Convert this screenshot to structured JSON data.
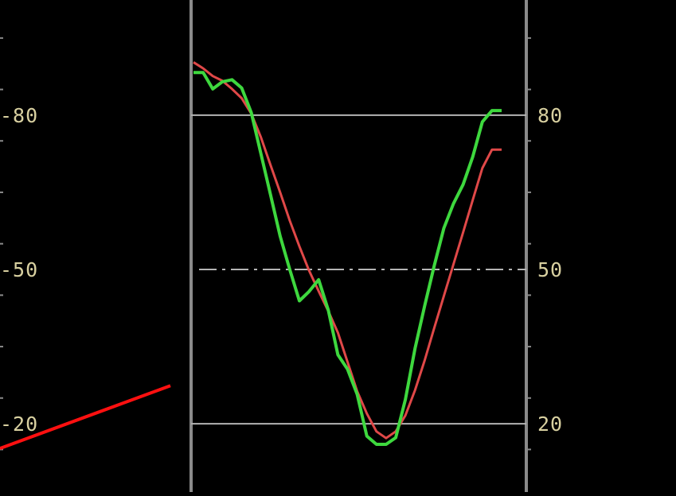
{
  "chart_data": [
    {
      "type": "line",
      "title": "",
      "ylim": [
        0,
        100
      ],
      "right_axis_ticks": [
        {
          "value": 80,
          "label": "80"
        },
        {
          "value": 50,
          "label": "50"
        },
        {
          "value": 20,
          "label": "20"
        }
      ],
      "left_axis_ticks": [
        {
          "value": 80,
          "label": "-80"
        },
        {
          "value": 50,
          "label": "-50"
        },
        {
          "value": 20,
          "label": "-20"
        }
      ],
      "reference_lines": [
        {
          "value": 80,
          "style": "solid"
        },
        {
          "value": 50,
          "style": "dash-dot"
        },
        {
          "value": 20,
          "style": "solid"
        }
      ],
      "x": [
        0,
        1,
        2,
        3,
        4,
        5,
        6,
        7,
        8,
        9,
        10,
        11,
        12,
        13,
        14,
        15,
        16,
        17,
        18,
        19,
        20,
        21,
        22,
        23,
        24,
        25,
        26,
        27,
        28,
        29,
        30,
        31,
        32
      ],
      "series": [
        {
          "color": "#3ed83e",
          "values": [
            88.3,
            88.3,
            85.1,
            86.5,
            86.9,
            85.3,
            80.5,
            72.5,
            64.5,
            56.5,
            50.0,
            43.9,
            45.7,
            48.0,
            42.1,
            33.4,
            30.6,
            25.7,
            17.6,
            16.0,
            16.0,
            17.3,
            24.7,
            34.6,
            42.9,
            50.7,
            58.0,
            62.8,
            66.5,
            71.9,
            78.7,
            80.9,
            80.9
          ]
        },
        {
          "color": "#e04848",
          "values": [
            90.3,
            89.1,
            87.6,
            86.7,
            85.1,
            83.3,
            80.3,
            75.7,
            70.3,
            65.0,
            59.5,
            54.5,
            49.8,
            45.8,
            41.9,
            37.7,
            32.0,
            26.3,
            22.0,
            18.5,
            17.2,
            18.5,
            21.6,
            26.5,
            32.3,
            38.6,
            44.8,
            51.0,
            57.2,
            63.5,
            69.7,
            73.3,
            73.3
          ]
        }
      ]
    },
    {
      "type": "line",
      "title": "",
      "series": [
        {
          "color": "#ff1010",
          "values": [
            15.2,
            27.4
          ]
        }
      ]
    }
  ]
}
